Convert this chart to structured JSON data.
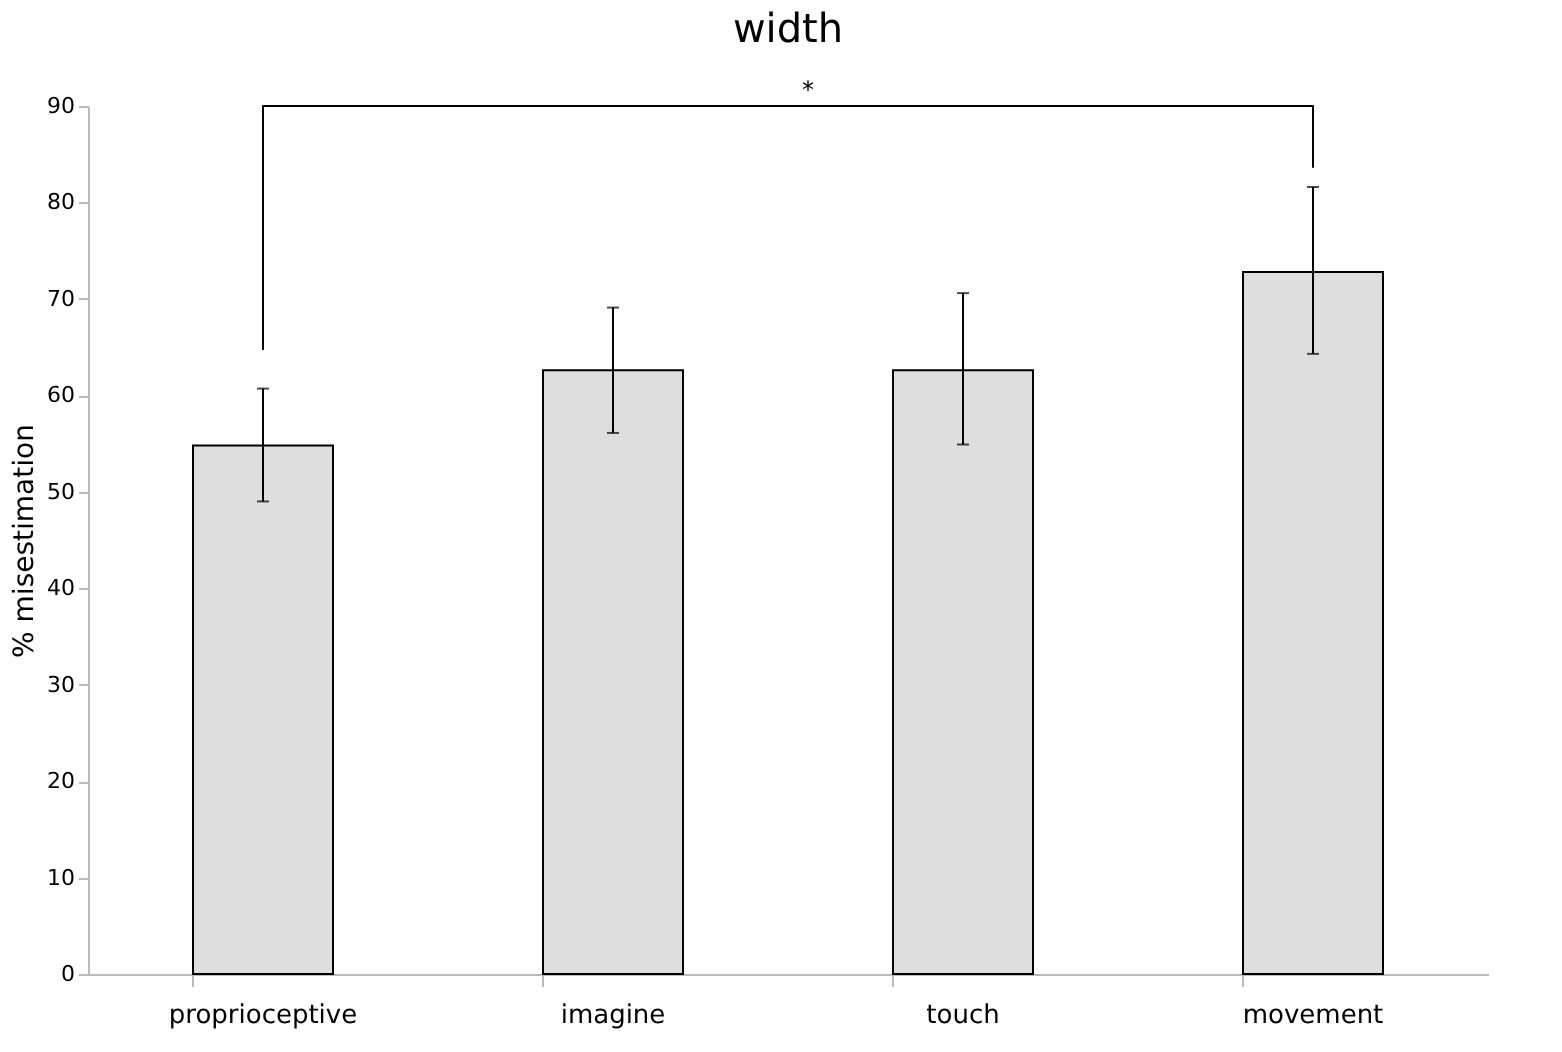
{
  "chart_data": {
    "type": "bar",
    "title": "width",
    "ylabel": "% misestimation",
    "categories": [
      "proprioceptive",
      "imagine",
      "touch",
      "movement"
    ],
    "values": [
      54.8,
      62.6,
      62.6,
      72.8
    ],
    "errors": [
      [
        49.0,
        60.7
      ],
      [
        56.1,
        69.1
      ],
      [
        54.9,
        70.6
      ],
      [
        64.3,
        81.6
      ]
    ],
    "color": "#dedede",
    "ylim": [
      0,
      90
    ],
    "yticks": [
      0,
      10,
      20,
      30,
      40,
      50,
      60,
      70,
      80,
      90
    ],
    "grid": false,
    "annotations": [
      "*"
    ]
  }
}
